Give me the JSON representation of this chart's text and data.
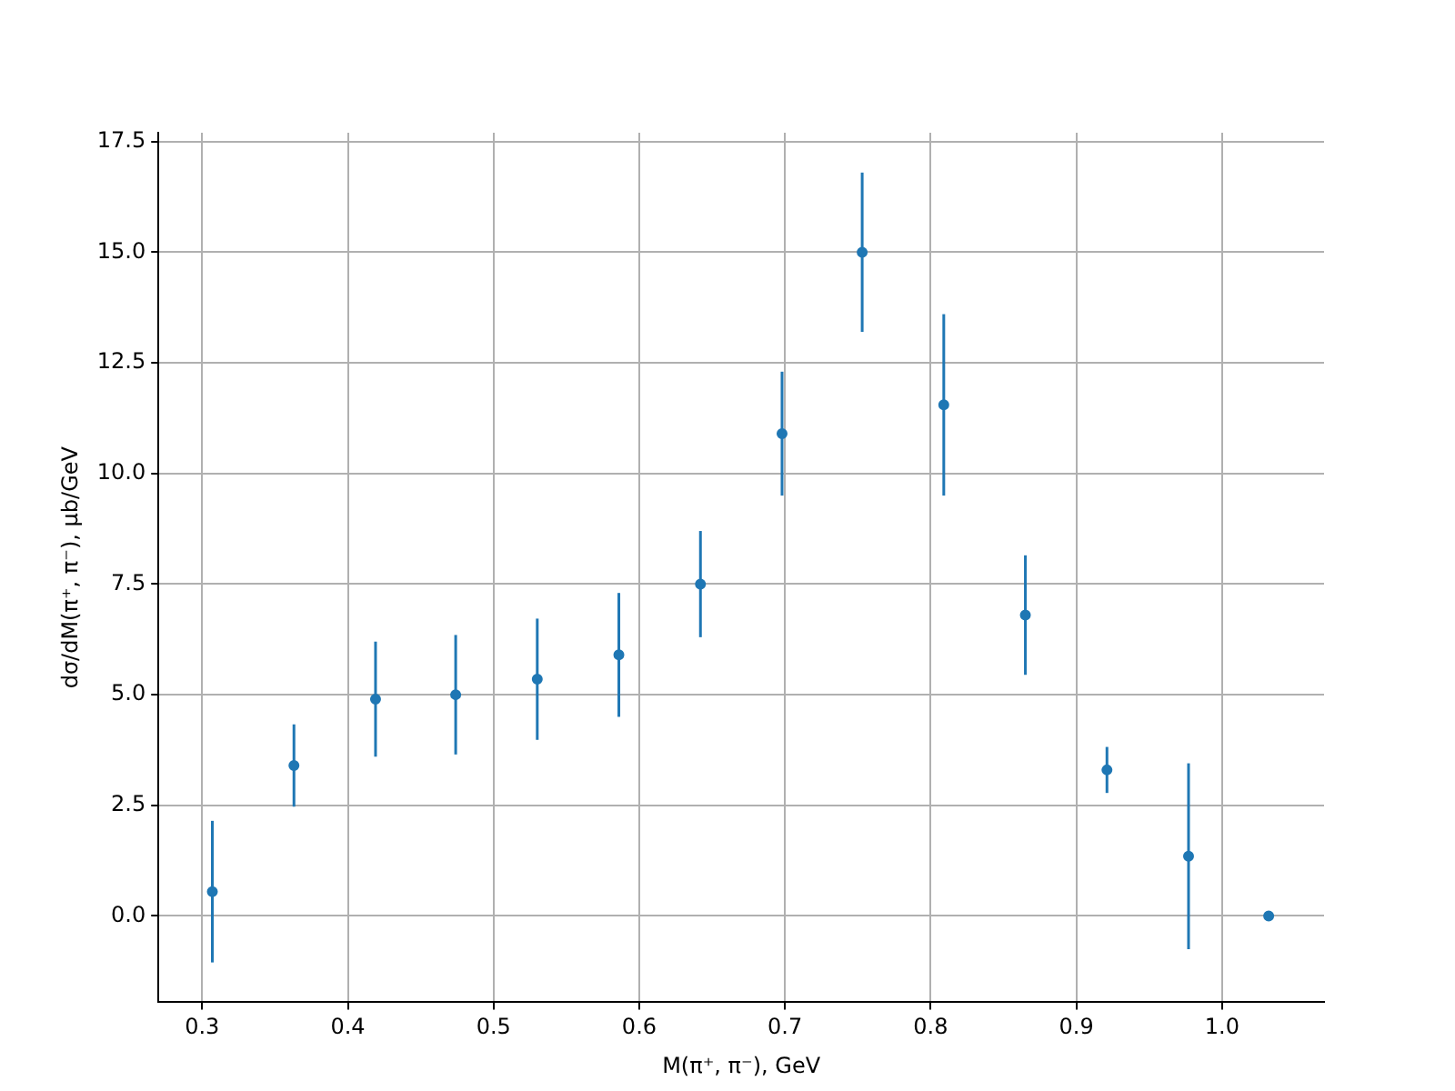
{
  "chart_data": {
    "type": "scatter",
    "xlabel": "M(π⁺, π⁻), GeV",
    "ylabel": "dσ/dM(π⁺, π⁻), μb/GeV",
    "series": [
      {
        "color": "#1f77b4",
        "x": [
          0.307,
          0.363,
          0.419,
          0.474,
          0.53,
          0.586,
          0.642,
          0.698,
          0.753,
          0.809,
          0.865,
          0.921,
          0.977,
          1.032
        ],
        "values": [
          0.55,
          3.4,
          4.9,
          5.0,
          5.35,
          5.9,
          7.5,
          10.9,
          15.0,
          11.55,
          6.8,
          3.3,
          1.35,
          0.0
        ],
        "errors": [
          1.6,
          0.93,
          1.3,
          1.35,
          1.37,
          1.4,
          1.2,
          1.4,
          1.8,
          2.05,
          1.35,
          0.52,
          2.1,
          null
        ]
      }
    ],
    "xlim": [
      0.27,
      1.07
    ],
    "ylim": [
      -1.95,
      17.7
    ],
    "xticks": [
      0.3,
      0.4,
      0.5,
      0.6,
      0.7,
      0.8,
      0.9,
      {
        "value": 1,
        "label": "1.0"
      }
    ],
    "yticks": [
      {
        "value": 0,
        "label": "0.0"
      },
      {
        "value": 2.5,
        "label": "2.5"
      },
      {
        "value": 5,
        "label": "5.0"
      },
      {
        "value": 7.5,
        "label": "7.5"
      },
      {
        "value": 10,
        "label": "10.0"
      },
      {
        "value": 12.5,
        "label": "12.5"
      },
      {
        "value": 15,
        "label": "15.0"
      },
      {
        "value": 17.5,
        "label": "17.5"
      }
    ],
    "grid": true,
    "marker": "circle",
    "legend": false
  }
}
